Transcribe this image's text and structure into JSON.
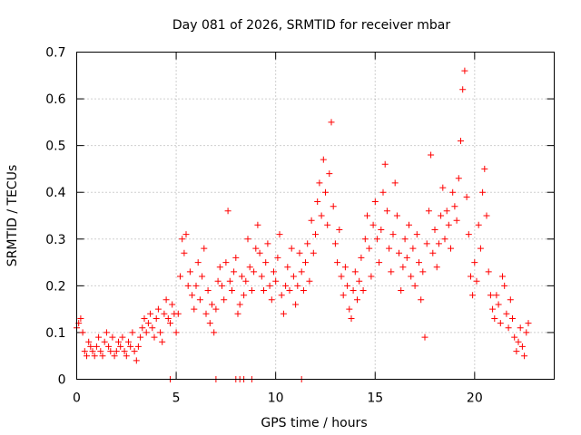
{
  "chart_data": {
    "type": "scatter",
    "title": "Day 081 of 2026, SRMTID for receiver mbar",
    "xlabel": "GPS time / hours",
    "ylabel": "SRMTID / TECUs",
    "xlim": [
      0,
      24
    ],
    "ylim": [
      0,
      0.7
    ],
    "xticks": [
      0,
      5,
      10,
      15,
      20
    ],
    "yticks": [
      0,
      0.1,
      0.2,
      0.3,
      0.4,
      0.5,
      0.6,
      0.7
    ],
    "xtick_labels": [
      "0",
      "5",
      "10",
      "15",
      "20"
    ],
    "ytick_labels": [
      "0",
      "0.1",
      "0.2",
      "0.3",
      "0.4",
      "0.5",
      "0.6",
      "0.7"
    ],
    "grid": true,
    "marker": "+",
    "color": "#ff0000",
    "series": [
      {
        "name": "SRMTID",
        "points": [
          [
            0.0,
            0.11
          ],
          [
            0.1,
            0.12
          ],
          [
            0.2,
            0.13
          ],
          [
            0.3,
            0.1
          ],
          [
            0.4,
            0.06
          ],
          [
            0.5,
            0.05
          ],
          [
            0.6,
            0.08
          ],
          [
            0.7,
            0.07
          ],
          [
            0.8,
            0.06
          ],
          [
            0.9,
            0.05
          ],
          [
            1.0,
            0.07
          ],
          [
            1.1,
            0.09
          ],
          [
            1.2,
            0.06
          ],
          [
            1.3,
            0.05
          ],
          [
            1.4,
            0.08
          ],
          [
            1.5,
            0.1
          ],
          [
            1.6,
            0.07
          ],
          [
            1.7,
            0.06
          ],
          [
            1.8,
            0.09
          ],
          [
            1.9,
            0.05
          ],
          [
            2.0,
            0.06
          ],
          [
            2.1,
            0.08
          ],
          [
            2.2,
            0.07
          ],
          [
            2.3,
            0.09
          ],
          [
            2.4,
            0.06
          ],
          [
            2.5,
            0.05
          ],
          [
            2.6,
            0.08
          ],
          [
            2.7,
            0.07
          ],
          [
            2.8,
            0.1
          ],
          [
            2.9,
            0.06
          ],
          [
            3.0,
            0.04
          ],
          [
            3.1,
            0.07
          ],
          [
            3.2,
            0.09
          ],
          [
            3.3,
            0.11
          ],
          [
            3.4,
            0.13
          ],
          [
            3.5,
            0.1
          ],
          [
            3.6,
            0.12
          ],
          [
            3.7,
            0.14
          ],
          [
            3.8,
            0.11
          ],
          [
            3.9,
            0.09
          ],
          [
            4.0,
            0.13
          ],
          [
            4.1,
            0.15
          ],
          [
            4.2,
            0.1
          ],
          [
            4.3,
            0.08
          ],
          [
            4.4,
            0.14
          ],
          [
            4.5,
            0.17
          ],
          [
            4.6,
            0.13
          ],
          [
            4.7,
            0.12
          ],
          [
            4.8,
            0.16
          ],
          [
            4.9,
            0.14
          ],
          [
            5.0,
            0.1
          ],
          [
            5.1,
            0.14
          ],
          [
            5.2,
            0.22
          ],
          [
            5.3,
            0.3
          ],
          [
            5.4,
            0.27
          ],
          [
            5.5,
            0.31
          ],
          [
            5.6,
            0.2
          ],
          [
            5.7,
            0.23
          ],
          [
            5.8,
            0.18
          ],
          [
            5.9,
            0.15
          ],
          [
            6.0,
            0.2
          ],
          [
            6.1,
            0.25
          ],
          [
            6.2,
            0.17
          ],
          [
            6.3,
            0.22
          ],
          [
            6.4,
            0.28
          ],
          [
            6.5,
            0.14
          ],
          [
            6.6,
            0.19
          ],
          [
            6.7,
            0.12
          ],
          [
            6.8,
            0.16
          ],
          [
            6.9,
            0.1
          ],
          [
            7.0,
            0.15
          ],
          [
            7.1,
            0.21
          ],
          [
            7.2,
            0.24
          ],
          [
            7.3,
            0.2
          ],
          [
            7.4,
            0.17
          ],
          [
            7.5,
            0.25
          ],
          [
            7.6,
            0.36
          ],
          [
            7.7,
            0.21
          ],
          [
            7.8,
            0.19
          ],
          [
            7.9,
            0.23
          ],
          [
            8.0,
            0.26
          ],
          [
            8.1,
            0.14
          ],
          [
            8.2,
            0.16
          ],
          [
            8.3,
            0.22
          ],
          [
            8.4,
            0.18
          ],
          [
            8.5,
            0.21
          ],
          [
            8.6,
            0.3
          ],
          [
            8.7,
            0.24
          ],
          [
            8.8,
            0.19
          ],
          [
            8.9,
            0.23
          ],
          [
            9.0,
            0.28
          ],
          [
            9.1,
            0.33
          ],
          [
            9.2,
            0.27
          ],
          [
            9.3,
            0.22
          ],
          [
            9.4,
            0.19
          ],
          [
            9.5,
            0.25
          ],
          [
            9.6,
            0.29
          ],
          [
            9.7,
            0.2
          ],
          [
            9.8,
            0.17
          ],
          [
            9.9,
            0.23
          ],
          [
            10.0,
            0.21
          ],
          [
            10.1,
            0.26
          ],
          [
            10.2,
            0.31
          ],
          [
            10.3,
            0.18
          ],
          [
            10.4,
            0.14
          ],
          [
            10.5,
            0.2
          ],
          [
            10.6,
            0.24
          ],
          [
            10.7,
            0.19
          ],
          [
            10.8,
            0.28
          ],
          [
            10.9,
            0.22
          ],
          [
            11.0,
            0.16
          ],
          [
            11.1,
            0.2
          ],
          [
            11.2,
            0.27
          ],
          [
            11.3,
            0.23
          ],
          [
            11.4,
            0.19
          ],
          [
            11.5,
            0.25
          ],
          [
            11.6,
            0.29
          ],
          [
            11.7,
            0.21
          ],
          [
            11.8,
            0.34
          ],
          [
            11.9,
            0.27
          ],
          [
            12.0,
            0.31
          ],
          [
            12.1,
            0.38
          ],
          [
            12.2,
            0.42
          ],
          [
            12.3,
            0.35
          ],
          [
            12.4,
            0.47
          ],
          [
            12.5,
            0.4
          ],
          [
            12.6,
            0.33
          ],
          [
            12.7,
            0.44
          ],
          [
            12.8,
            0.55
          ],
          [
            12.9,
            0.37
          ],
          [
            13.0,
            0.29
          ],
          [
            13.1,
            0.25
          ],
          [
            13.2,
            0.32
          ],
          [
            13.3,
            0.22
          ],
          [
            13.4,
            0.18
          ],
          [
            13.5,
            0.24
          ],
          [
            13.6,
            0.2
          ],
          [
            13.7,
            0.15
          ],
          [
            13.8,
            0.13
          ],
          [
            13.9,
            0.19
          ],
          [
            14.0,
            0.23
          ],
          [
            14.1,
            0.17
          ],
          [
            14.2,
            0.21
          ],
          [
            14.3,
            0.26
          ],
          [
            14.4,
            0.19
          ],
          [
            14.5,
            0.3
          ],
          [
            14.6,
            0.35
          ],
          [
            14.7,
            0.28
          ],
          [
            14.8,
            0.22
          ],
          [
            14.9,
            0.33
          ],
          [
            15.0,
            0.38
          ],
          [
            15.1,
            0.3
          ],
          [
            15.2,
            0.25
          ],
          [
            15.3,
            0.32
          ],
          [
            15.4,
            0.4
          ],
          [
            15.5,
            0.46
          ],
          [
            15.6,
            0.36
          ],
          [
            15.7,
            0.28
          ],
          [
            15.8,
            0.23
          ],
          [
            15.9,
            0.31
          ],
          [
            16.0,
            0.42
          ],
          [
            16.1,
            0.35
          ],
          [
            16.2,
            0.27
          ],
          [
            16.3,
            0.19
          ],
          [
            16.4,
            0.24
          ],
          [
            16.5,
            0.3
          ],
          [
            16.6,
            0.26
          ],
          [
            16.7,
            0.33
          ],
          [
            16.8,
            0.22
          ],
          [
            16.9,
            0.28
          ],
          [
            17.0,
            0.2
          ],
          [
            17.1,
            0.31
          ],
          [
            17.2,
            0.25
          ],
          [
            17.3,
            0.17
          ],
          [
            17.4,
            0.23
          ],
          [
            17.5,
            0.09
          ],
          [
            17.6,
            0.29
          ],
          [
            17.7,
            0.36
          ],
          [
            17.8,
            0.48
          ],
          [
            17.9,
            0.27
          ],
          [
            18.0,
            0.32
          ],
          [
            18.1,
            0.24
          ],
          [
            18.2,
            0.29
          ],
          [
            18.3,
            0.35
          ],
          [
            18.4,
            0.41
          ],
          [
            18.5,
            0.3
          ],
          [
            18.6,
            0.36
          ],
          [
            18.7,
            0.33
          ],
          [
            18.8,
            0.28
          ],
          [
            18.9,
            0.4
          ],
          [
            19.0,
            0.37
          ],
          [
            19.1,
            0.34
          ],
          [
            19.2,
            0.43
          ],
          [
            19.3,
            0.51
          ],
          [
            19.4,
            0.62
          ],
          [
            19.5,
            0.66
          ],
          [
            19.6,
            0.39
          ],
          [
            19.7,
            0.31
          ],
          [
            19.8,
            0.22
          ],
          [
            19.9,
            0.18
          ],
          [
            20.0,
            0.25
          ],
          [
            20.1,
            0.21
          ],
          [
            20.2,
            0.33
          ],
          [
            20.3,
            0.28
          ],
          [
            20.4,
            0.4
          ],
          [
            20.5,
            0.45
          ],
          [
            20.6,
            0.35
          ],
          [
            20.7,
            0.23
          ],
          [
            20.8,
            0.18
          ],
          [
            20.9,
            0.15
          ],
          [
            21.0,
            0.13
          ],
          [
            21.1,
            0.18
          ],
          [
            21.2,
            0.16
          ],
          [
            21.3,
            0.12
          ],
          [
            21.4,
            0.22
          ],
          [
            21.5,
            0.2
          ],
          [
            21.6,
            0.14
          ],
          [
            21.7,
            0.11
          ],
          [
            21.8,
            0.17
          ],
          [
            21.9,
            0.13
          ],
          [
            22.0,
            0.09
          ],
          [
            22.1,
            0.06
          ],
          [
            22.2,
            0.08
          ],
          [
            22.3,
            0.11
          ],
          [
            22.4,
            0.07
          ],
          [
            22.5,
            0.05
          ],
          [
            22.6,
            0.1
          ],
          [
            22.7,
            0.12
          ],
          [
            4.7,
            0.0
          ],
          [
            7.0,
            0.0
          ],
          [
            8.0,
            0.0
          ],
          [
            8.2,
            0.0
          ],
          [
            8.4,
            0.0
          ],
          [
            8.8,
            0.0
          ],
          [
            11.3,
            0.0
          ]
        ]
      }
    ]
  }
}
